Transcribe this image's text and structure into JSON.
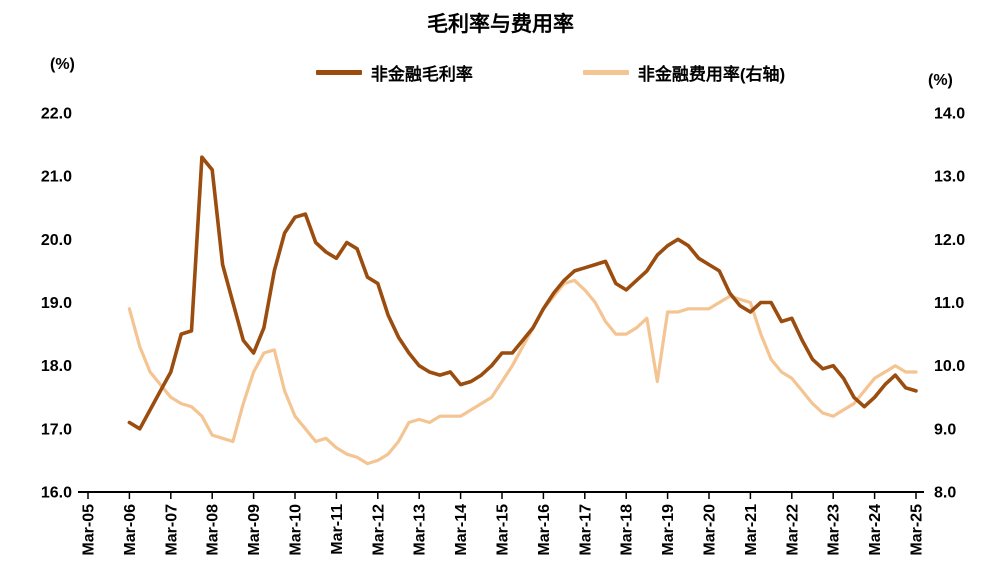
{
  "title": "毛利率与费用率",
  "axis_units": {
    "left": "(%)",
    "right": "(%)"
  },
  "legend": [
    {
      "key": "gross-margin",
      "label": "非金融毛利率",
      "color": "#9A4D0F"
    },
    {
      "key": "expense-ratio",
      "label": "非金融费用率(右轴)",
      "color": "#F4C492"
    }
  ],
  "chart_data": {
    "type": "line",
    "title": "毛利率与费用率",
    "x_tick_labels": [
      "Mar-05",
      "Mar-06",
      "Mar-07",
      "Mar-08",
      "Mar-09",
      "Mar-10",
      "Mar-11",
      "Mar-12",
      "Mar-13",
      "Mar-14",
      "Mar-15",
      "Mar-16",
      "Mar-17",
      "Mar-18",
      "Mar-19",
      "Mar-20",
      "Mar-21",
      "Mar-22",
      "Mar-23",
      "Mar-24",
      "Mar-25"
    ],
    "quarters_per_tick": 4,
    "data_start_quarter": 4,
    "grid": "off",
    "legend_position": "top",
    "left_axis": {
      "min": 16,
      "max": 22,
      "tick_labels": [
        "22.0",
        "21.0",
        "20.0",
        "19.0",
        "18.0",
        "17.0",
        "16.0"
      ]
    },
    "right_axis": {
      "min": 8,
      "max": 14,
      "tick_labels": [
        "14.0",
        "13.0",
        "12.0",
        "11.0",
        "10.0",
        "9.0",
        "8.0"
      ]
    },
    "series": [
      {
        "key": "gross-margin",
        "name": "非金融毛利率",
        "axis": "left",
        "color": "#9A4D0F",
        "stroke_width": 3.6,
        "values": [
          17.1,
          17.0,
          17.3,
          17.6,
          17.9,
          18.5,
          18.55,
          21.3,
          21.1,
          19.6,
          19.0,
          18.4,
          18.2,
          18.6,
          19.5,
          20.1,
          20.35,
          20.4,
          19.95,
          19.8,
          19.7,
          19.95,
          19.85,
          19.4,
          19.3,
          18.8,
          18.45,
          18.2,
          18.0,
          17.9,
          17.85,
          17.9,
          17.7,
          17.75,
          17.85,
          18.0,
          18.2,
          18.2,
          18.4,
          18.6,
          18.9,
          19.15,
          19.35,
          19.5,
          19.55,
          19.6,
          19.65,
          19.3,
          19.2,
          19.35,
          19.5,
          19.75,
          19.9,
          20.0,
          19.9,
          19.7,
          19.6,
          19.5,
          19.15,
          18.95,
          18.85,
          19.0,
          19.0,
          18.7,
          18.75,
          18.4,
          18.1,
          17.95,
          18.0,
          17.8,
          17.5,
          17.35,
          17.5,
          17.7,
          17.85,
          17.65,
          17.6
        ]
      },
      {
        "key": "expense-ratio",
        "name": "非金融费用率(右轴)",
        "axis": "right",
        "color": "#F4C492",
        "stroke_width": 3.2,
        "values": [
          10.9,
          10.3,
          9.9,
          9.7,
          9.5,
          9.4,
          9.35,
          9.2,
          8.9,
          8.85,
          8.8,
          9.4,
          9.9,
          10.2,
          10.25,
          9.6,
          9.2,
          9.0,
          8.8,
          8.85,
          8.7,
          8.6,
          8.55,
          8.45,
          8.5,
          8.6,
          8.8,
          9.1,
          9.15,
          9.1,
          9.2,
          9.2,
          9.2,
          9.3,
          9.4,
          9.5,
          9.75,
          10.0,
          10.3,
          10.6,
          10.9,
          11.1,
          11.3,
          11.35,
          11.2,
          11.0,
          10.7,
          10.5,
          10.5,
          10.6,
          10.75,
          9.75,
          10.85,
          10.85,
          10.9,
          10.9,
          10.9,
          11.0,
          11.1,
          11.05,
          11.0,
          10.5,
          10.1,
          9.9,
          9.8,
          9.6,
          9.4,
          9.25,
          9.2,
          9.3,
          9.4,
          9.6,
          9.8,
          9.9,
          10.0,
          9.9,
          9.9
        ]
      }
    ]
  }
}
